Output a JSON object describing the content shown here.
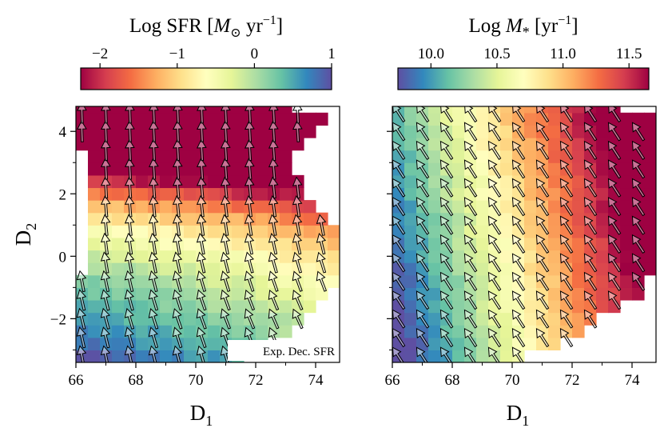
{
  "chart_data": [
    {
      "type": "heatmap",
      "panel": "left",
      "colorbar": {
        "label": "Log SFR [M⊙ yr⁻¹]",
        "label_parts": [
          "Log SFR [",
          "M",
          "⊙",
          " yr",
          "−1",
          "]"
        ],
        "ticks": [
          -2,
          -1,
          0,
          1
        ],
        "tick_labels": [
          "−2",
          "−1",
          "0",
          "1"
        ],
        "range": [
          -2.25,
          1.0
        ],
        "colormap": "Spectral"
      },
      "xlabel": "D1",
      "xlabel_main": "D",
      "xlabel_sub": "1",
      "ylabel": "D2",
      "ylabel_main": "D",
      "ylabel_sub": "2",
      "xlim": [
        66,
        74.8
      ],
      "ylim": [
        -3.4,
        4.8
      ],
      "xticks": [
        66,
        68,
        70,
        72,
        74
      ],
      "xtick_labels": [
        "66",
        "68",
        "70",
        "72",
        "74"
      ],
      "yticks": [
        -2,
        0,
        2,
        4
      ],
      "ytick_labels": [
        "−2",
        "0",
        "2",
        "4"
      ],
      "grid_dx": 0.4,
      "grid_dy": 0.4,
      "value_model": "Log SFR ≈ 1.0 - 0.066*(D1-66) - 0.0042*(D1-66)^2 - 0.36*(D2+3.4) + 0.065*(D2+3.4)^2 - 0.0155*(D2+3.4)^3",
      "coverage": {
        "x0": 66.0,
        "x_upper": [
          [
            -3.4,
            71.2
          ],
          [
            -2.8,
            72.6
          ],
          [
            -2.0,
            73.6
          ],
          [
            -1.2,
            74.4
          ],
          [
            -0.8,
            74.8
          ],
          [
            0.8,
            74.8
          ],
          [
            1.6,
            74.0
          ],
          [
            2.4,
            73.6
          ],
          [
            3.2,
            73.2
          ],
          [
            3.6,
            73.6
          ],
          [
            4.0,
            74.0
          ],
          [
            4.4,
            74.4
          ],
          [
            4.8,
            73.2
          ]
        ],
        "x_lower": [
          [
            -3.4,
            66.0
          ],
          [
            -0.6,
            66.0
          ],
          [
            -0.4,
            66.4
          ],
          [
            1.2,
            66.6
          ],
          [
            2.8,
            66.6
          ],
          [
            3.2,
            66.4
          ],
          [
            3.6,
            66.2
          ],
          [
            4.0,
            66.0
          ],
          [
            4.8,
            66.0
          ]
        ]
      },
      "arrows": {
        "dx": 0.8,
        "dy": 0.6,
        "direction": "up-left",
        "gradient_of": "Log SFR"
      },
      "annotation": "Exp. Dec. SFR"
    },
    {
      "type": "heatmap",
      "panel": "right",
      "colorbar": {
        "label": "Log M* [yr⁻¹]",
        "label_parts": [
          "Log ",
          "M",
          "*",
          " [yr",
          "−1",
          "]"
        ],
        "ticks": [
          10.0,
          10.5,
          11.0,
          11.5
        ],
        "tick_labels": [
          "10.0",
          "10.5",
          "11.0",
          "11.5"
        ],
        "range": [
          9.75,
          11.65
        ],
        "colormap": "Spectral_r"
      },
      "xlabel": "D1",
      "xlabel_main": "D",
      "xlabel_sub": "1",
      "xlim": [
        66,
        74.8
      ],
      "ylim": [
        -3.4,
        4.8
      ],
      "xticks": [
        66,
        68,
        70,
        72,
        74
      ],
      "xtick_labels": [
        "66",
        "68",
        "70",
        "72",
        "74"
      ],
      "yticks": [
        -2,
        0,
        2,
        4
      ],
      "grid_dx": 0.4,
      "grid_dy": 0.4,
      "value_model": "Log M* ≈ 9.8 + 0.235*(D1-66) + 0.06*D2",
      "coverage": {
        "x0": 66.0,
        "x_upper": [
          [
            -3.4,
            70.0
          ],
          [
            -2.8,
            71.6
          ],
          [
            -2.2,
            72.6
          ],
          [
            -1.6,
            73.6
          ],
          [
            -1.2,
            74.4
          ],
          [
            -0.4,
            74.8
          ],
          [
            4.4,
            74.8
          ],
          [
            4.8,
            73.6
          ]
        ]
      },
      "arrows": {
        "dx": 0.8,
        "dy": 0.6,
        "direction": "up-left",
        "gradient_of": "Log M*"
      }
    }
  ]
}
